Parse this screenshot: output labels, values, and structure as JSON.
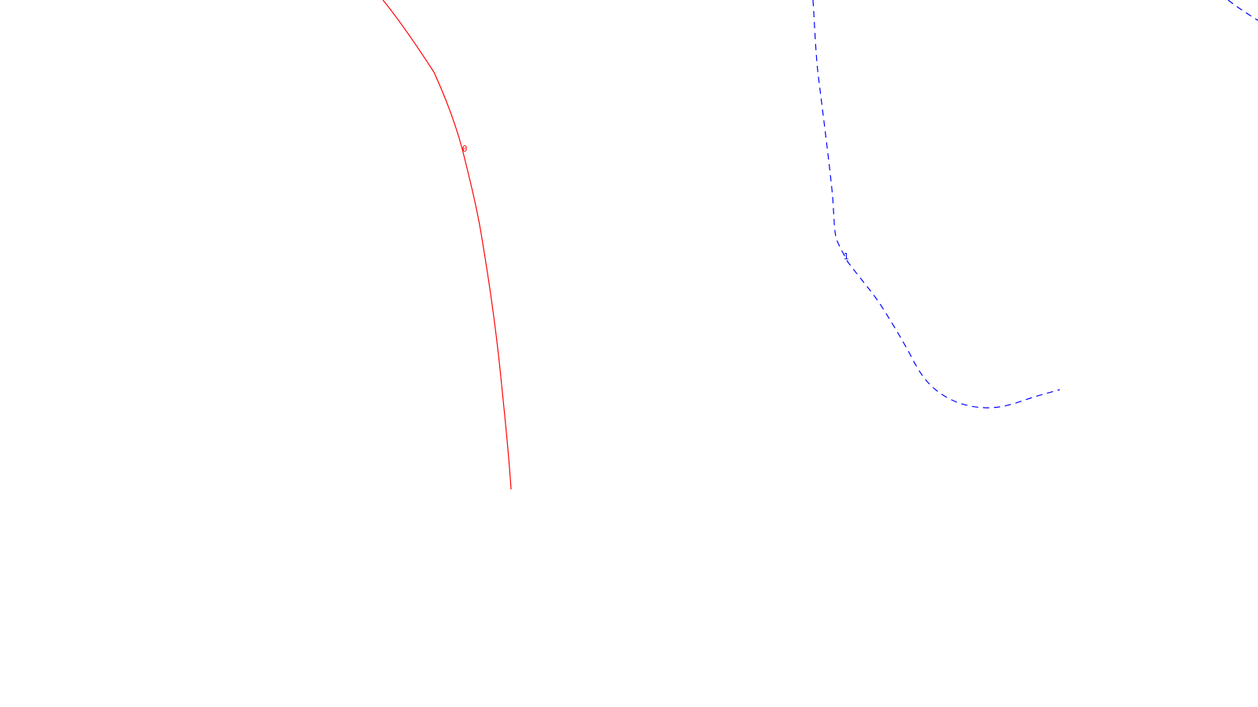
{
  "canvas": {
    "background": "#ffffff"
  },
  "contours": [
    {
      "name": "contour-line-red",
      "label": "0",
      "color": "#ff0000",
      "style": "solid"
    },
    {
      "name": "contour-line-blue",
      "label": "1",
      "color": "#0000ff",
      "style": "dashed"
    }
  ]
}
